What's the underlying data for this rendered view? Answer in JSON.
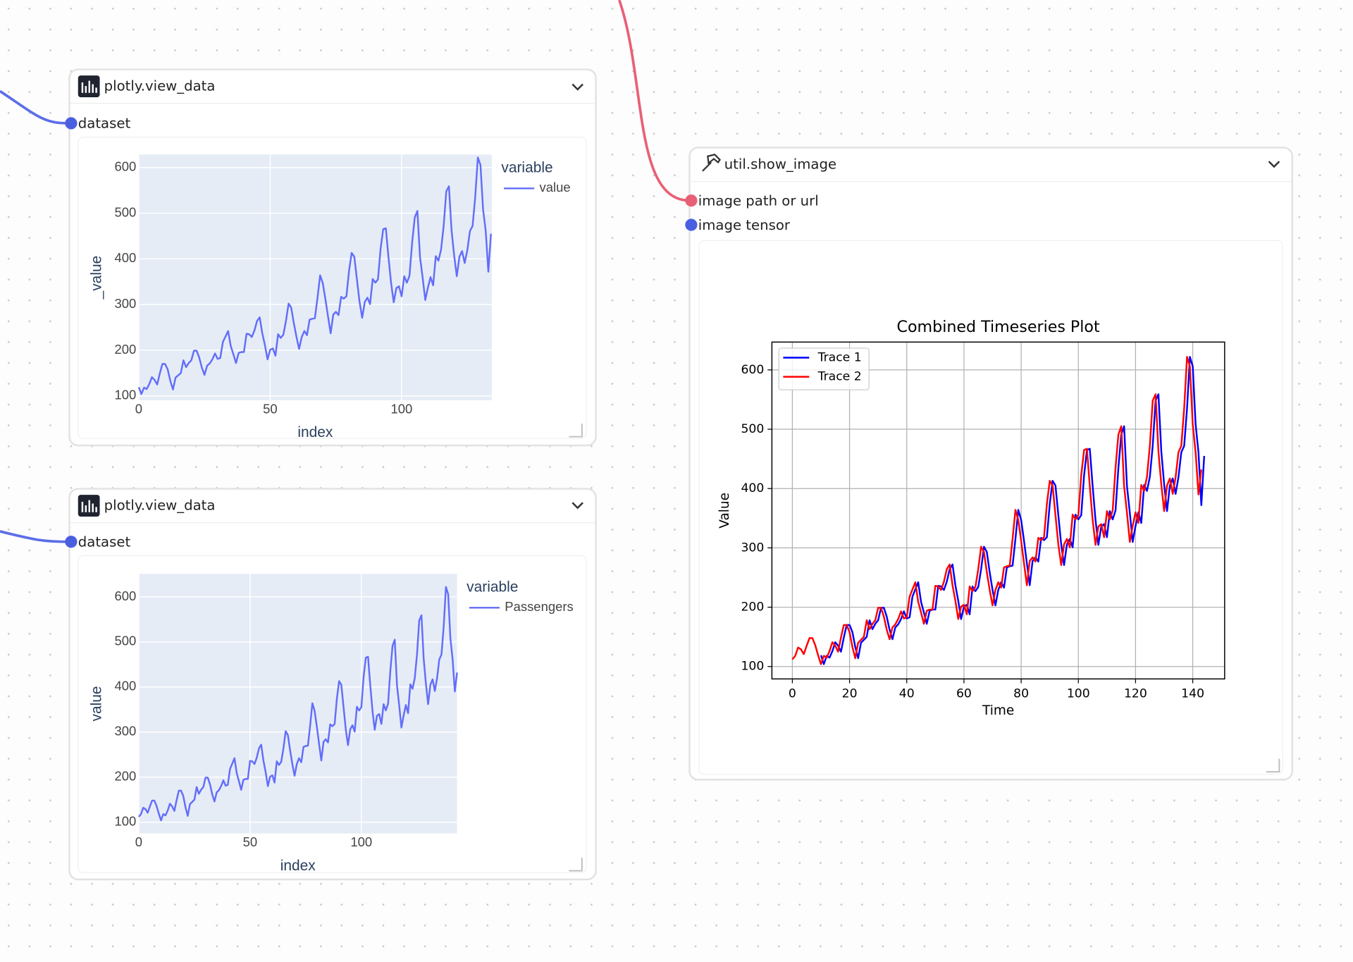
{
  "nodes": [
    {
      "title": "plotly.view_data",
      "inputs": [
        "dataset"
      ],
      "chart": {
        "type": "line",
        "xlabel": "index",
        "ylabel": "_value",
        "legend_title": "variable",
        "grid": true,
        "xlim": [
          0,
          134.3
        ],
        "ylim": [
          90.5,
          628.5
        ],
        "xticks": [
          0,
          50,
          100
        ],
        "yticks": [
          100,
          200,
          300,
          400,
          500,
          600
        ],
        "series": [
          {
            "name": "value",
            "color": "#636efa",
            "values": [
              119,
              104,
              118,
              115,
              126,
              141,
              135,
              125,
              149,
              170,
              170,
              158,
              133,
              114,
              140,
              145,
              150,
              178,
              163,
              172,
              178,
              199,
              199,
              184,
              162,
              146,
              166,
              171,
              180,
              193,
              181,
              183,
              218,
              230,
              242,
              209,
              191,
              172,
              194,
              196,
              196,
              236,
              235,
              229,
              243,
              264,
              272,
              237,
              211,
              180,
              201,
              204,
              188,
              235,
              227,
              234,
              264,
              302,
              293,
              259,
              229,
              203,
              229,
              242,
              233,
              267,
              269,
              270,
              315,
              364,
              347,
              312,
              274,
              237,
              278,
              284,
              277,
              317,
              313,
              318,
              374,
              413,
              405,
              355,
              306,
              271,
              306,
              315,
              301,
              356,
              348,
              355,
              422,
              465,
              467,
              404,
              347,
              305,
              336,
              340,
              318,
              362,
              348,
              363,
              435,
              491,
              505,
              404,
              359,
              310,
              337,
              360,
              342,
              406,
              396,
              420,
              472,
              548,
              559,
              463,
              407,
              362,
              405,
              417,
              391,
              419,
              461,
              472,
              535,
              622,
              606,
              508,
              461,
              372,
              455
            ]
          }
        ]
      }
    },
    {
      "title": "plotly.view_data",
      "inputs": [
        "dataset"
      ],
      "chart": {
        "type": "line",
        "xlabel": "index",
        "ylabel": "value",
        "legend_title": "variable",
        "grid": true,
        "xlim": [
          0,
          143
        ],
        "ylim": [
          75,
          651
        ],
        "xticks": [
          0,
          50,
          100
        ],
        "yticks": [
          100,
          200,
          300,
          400,
          500,
          600
        ],
        "series": [
          {
            "name": "Passengers",
            "color": "#636efa",
            "values": [
              112,
              118,
              132,
              129,
              121,
              135,
              148,
              148,
              136,
              119,
              104,
              118,
              115,
              126,
              141,
              135,
              125,
              149,
              170,
              170,
              158,
              133,
              114,
              140,
              145,
              150,
              178,
              163,
              172,
              178,
              199,
              199,
              184,
              162,
              146,
              166,
              171,
              180,
              193,
              181,
              183,
              218,
              230,
              242,
              209,
              191,
              172,
              194,
              196,
              196,
              236,
              235,
              229,
              243,
              264,
              272,
              237,
              211,
              180,
              201,
              204,
              188,
              235,
              227,
              234,
              264,
              302,
              293,
              259,
              229,
              203,
              229,
              242,
              233,
              267,
              269,
              270,
              315,
              364,
              347,
              312,
              274,
              237,
              278,
              284,
              277,
              317,
              313,
              318,
              374,
              413,
              405,
              355,
              306,
              271,
              306,
              315,
              301,
              356,
              348,
              355,
              422,
              465,
              467,
              404,
              347,
              305,
              336,
              340,
              318,
              362,
              348,
              363,
              435,
              491,
              505,
              404,
              359,
              310,
              337,
              360,
              342,
              406,
              396,
              420,
              472,
              548,
              559,
              463,
              407,
              362,
              405,
              417,
              391,
              419,
              461,
              472,
              535,
              622,
              606,
              508,
              461,
              390,
              432
            ]
          }
        ]
      }
    },
    {
      "title": "util.show_image",
      "inputs": [
        "image path or url",
        "image tensor"
      ],
      "chart": {
        "type": "line",
        "title": "Combined Timeseries Plot",
        "xlabel": "Time",
        "ylabel": "Value",
        "grid": true,
        "legend": "upper left",
        "xlim": [
          -7.15,
          151.15
        ],
        "ylim": [
          79.1,
          646.9
        ],
        "xticks": [
          0,
          20,
          40,
          60,
          80,
          100,
          120,
          140
        ],
        "yticks": [
          100,
          200,
          300,
          400,
          500,
          600
        ],
        "series": [
          {
            "name": "Trace 1",
            "color": "#0000ff",
            "x": [
              10,
              11,
              12,
              13,
              14,
              15,
              16,
              17,
              18,
              19,
              20,
              21,
              22,
              23,
              24,
              25,
              26,
              27,
              28,
              29,
              30,
              31,
              32,
              33,
              34,
              35,
              36,
              37,
              38,
              39,
              40,
              41,
              42,
              43,
              44,
              45,
              46,
              47,
              48,
              49,
              50,
              51,
              52,
              53,
              54,
              55,
              56,
              57,
              58,
              59,
              60,
              61,
              62,
              63,
              64,
              65,
              66,
              67,
              68,
              69,
              70,
              71,
              72,
              73,
              74,
              75,
              76,
              77,
              78,
              79,
              80,
              81,
              82,
              83,
              84,
              85,
              86,
              87,
              88,
              89,
              90,
              91,
              92,
              93,
              94,
              95,
              96,
              97,
              98,
              99,
              100,
              101,
              102,
              103,
              104,
              105,
              106,
              107,
              108,
              109,
              110,
              111,
              112,
              113,
              114,
              115,
              116,
              117,
              118,
              119,
              120,
              121,
              122,
              123,
              124,
              125,
              126,
              127,
              128,
              129,
              130,
              131,
              132,
              133,
              134,
              135,
              136,
              137,
              138,
              139,
              140,
              141,
              142,
              143,
              144
            ],
            "values": [
              119,
              104,
              118,
              115,
              126,
              141,
              135,
              125,
              149,
              170,
              170,
              158,
              133,
              114,
              140,
              145,
              150,
              178,
              163,
              172,
              178,
              199,
              199,
              184,
              162,
              146,
              166,
              171,
              180,
              193,
              181,
              183,
              218,
              230,
              242,
              209,
              191,
              172,
              194,
              196,
              196,
              236,
              235,
              229,
              243,
              264,
              272,
              237,
              211,
              180,
              201,
              204,
              188,
              235,
              227,
              234,
              264,
              302,
              293,
              259,
              229,
              203,
              229,
              242,
              233,
              267,
              269,
              270,
              315,
              364,
              347,
              312,
              274,
              237,
              278,
              284,
              277,
              317,
              313,
              318,
              374,
              413,
              405,
              355,
              306,
              271,
              306,
              315,
              301,
              356,
              348,
              355,
              422,
              465,
              467,
              404,
              347,
              305,
              336,
              340,
              318,
              362,
              348,
              363,
              435,
              491,
              505,
              404,
              359,
              310,
              337,
              360,
              342,
              406,
              396,
              420,
              472,
              548,
              559,
              463,
              407,
              362,
              405,
              417,
              391,
              419,
              461,
              472,
              535,
              622,
              606,
              508,
              461,
              372,
              455
            ]
          },
          {
            "name": "Trace 2",
            "color": "#ff0000",
            "x": [
              0,
              1,
              2,
              3,
              4,
              5,
              6,
              7,
              8,
              9,
              10,
              11,
              12,
              13,
              14,
              15,
              16,
              17,
              18,
              19,
              20,
              21,
              22,
              23,
              24,
              25,
              26,
              27,
              28,
              29,
              30,
              31,
              32,
              33,
              34,
              35,
              36,
              37,
              38,
              39,
              40,
              41,
              42,
              43,
              44,
              45,
              46,
              47,
              48,
              49,
              50,
              51,
              52,
              53,
              54,
              55,
              56,
              57,
              58,
              59,
              60,
              61,
              62,
              63,
              64,
              65,
              66,
              67,
              68,
              69,
              70,
              71,
              72,
              73,
              74,
              75,
              76,
              77,
              78,
              79,
              80,
              81,
              82,
              83,
              84,
              85,
              86,
              87,
              88,
              89,
              90,
              91,
              92,
              93,
              94,
              95,
              96,
              97,
              98,
              99,
              100,
              101,
              102,
              103,
              104,
              105,
              106,
              107,
              108,
              109,
              110,
              111,
              112,
              113,
              114,
              115,
              116,
              117,
              118,
              119,
              120,
              121,
              122,
              123,
              124,
              125,
              126,
              127,
              128,
              129,
              130,
              131,
              132,
              133,
              134,
              135,
              136,
              137,
              138,
              139,
              140,
              141,
              142,
              143
            ],
            "values": [
              112,
              118,
              132,
              129,
              121,
              135,
              148,
              148,
              136,
              119,
              104,
              118,
              115,
              126,
              141,
              135,
              125,
              149,
              170,
              170,
              158,
              133,
              114,
              140,
              145,
              150,
              178,
              163,
              172,
              178,
              199,
              199,
              184,
              162,
              146,
              166,
              171,
              180,
              193,
              181,
              183,
              218,
              230,
              242,
              209,
              191,
              172,
              194,
              196,
              196,
              236,
              235,
              229,
              243,
              264,
              272,
              237,
              211,
              180,
              201,
              204,
              188,
              235,
              227,
              234,
              264,
              302,
              293,
              259,
              229,
              203,
              229,
              242,
              233,
              267,
              269,
              270,
              315,
              364,
              347,
              312,
              274,
              237,
              278,
              284,
              277,
              317,
              313,
              318,
              374,
              413,
              405,
              355,
              306,
              271,
              306,
              315,
              301,
              356,
              348,
              355,
              422,
              465,
              467,
              404,
              347,
              305,
              336,
              340,
              318,
              362,
              348,
              363,
              435,
              491,
              505,
              404,
              359,
              310,
              337,
              360,
              342,
              406,
              396,
              420,
              472,
              548,
              559,
              463,
              407,
              362,
              405,
              417,
              391,
              419,
              461,
              472,
              535,
              622,
              606,
              508,
              461,
              390,
              432
            ]
          }
        ]
      }
    }
  ]
}
